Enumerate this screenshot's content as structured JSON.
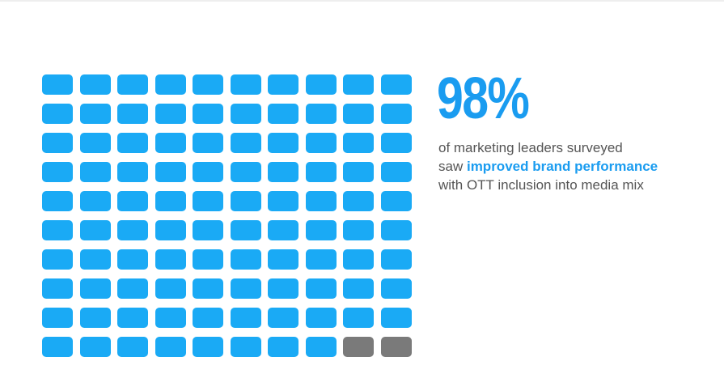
{
  "headline": {
    "value": "98%",
    "line1": "of marketing leaders surveyed",
    "line2_prefix": "saw",
    "line2_highlight": "improved brand performance",
    "line3": "with OTT inclusion into media mix"
  },
  "colors": {
    "filled": "#1aaaf5",
    "empty": "#7a7a7a",
    "accent": "#1a9cf0",
    "text": "#555555"
  },
  "chart_data": {
    "type": "waffle",
    "total": 100,
    "rows": 10,
    "columns": 10,
    "filled": 98,
    "unfilled": 2,
    "unit_icon": "tv-icon"
  }
}
